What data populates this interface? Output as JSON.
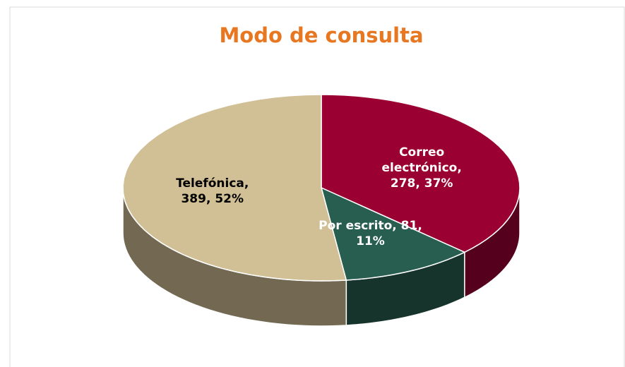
{
  "chart_data": {
    "type": "pie3d",
    "title": "Modo de consulta",
    "values": [
      278,
      81,
      389
    ],
    "value_labels": [
      "Correo electrónico, 278, 37%",
      "Por escrito, 81, 11%",
      "Telefónica, 389, 52%"
    ],
    "colors": [
      "#9b0033",
      "#285e50",
      "#d1bf95"
    ],
    "title_color": "#e87722"
  }
}
